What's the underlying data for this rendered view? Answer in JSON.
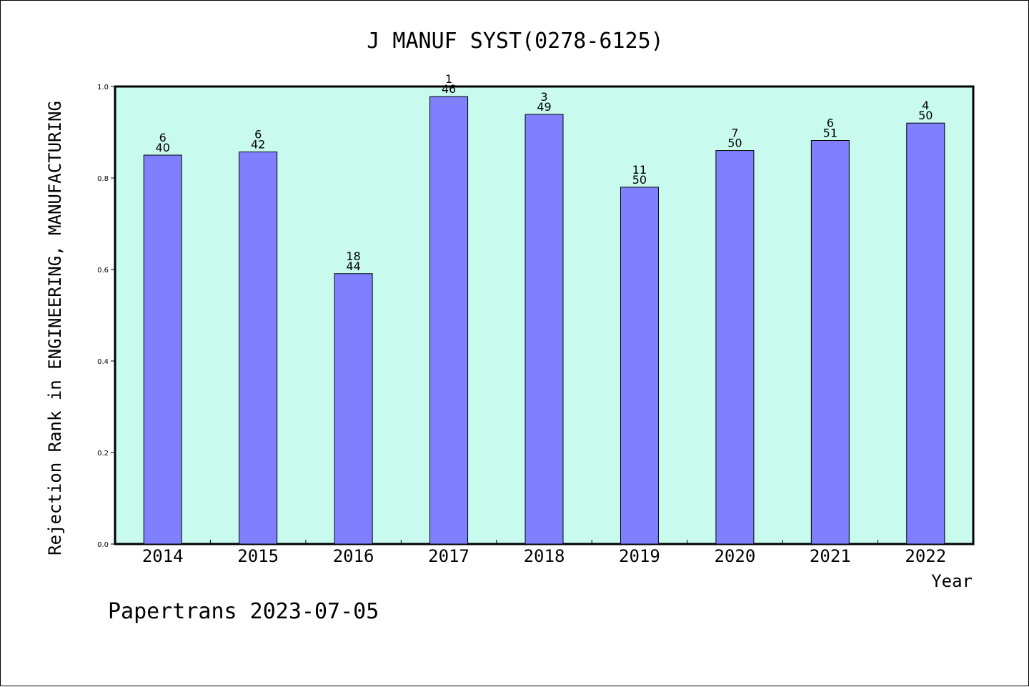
{
  "chart_data": {
    "type": "bar",
    "title": "J MANUF SYST(0278-6125)",
    "xlabel": "Year",
    "ylabel": "Rejection Rank in ENGINEERING, MANUFACTURING",
    "ylim": [
      0,
      1.0
    ],
    "yticks": [
      "0.0",
      "0.2",
      "0.4",
      "0.6",
      "0.8",
      "1.0"
    ],
    "grid": false,
    "categories": [
      "2014",
      "2015",
      "2016",
      "2017",
      "2018",
      "2019",
      "2020",
      "2021",
      "2022"
    ],
    "values": [
      0.85,
      0.857,
      0.591,
      0.978,
      0.939,
      0.78,
      0.86,
      0.882,
      0.92
    ],
    "rank": [
      "6",
      "6",
      "18",
      "1",
      "3",
      "11",
      "7",
      "6",
      "4"
    ],
    "total": [
      "40",
      "42",
      "44",
      "46",
      "49",
      "50",
      "50",
      "51",
      "50"
    ]
  },
  "colors": {
    "plot_background": "#c8faee",
    "bar_fill": "#8080ff",
    "bar_stroke": "#000000"
  },
  "footer": "Papertrans 2023-07-05"
}
